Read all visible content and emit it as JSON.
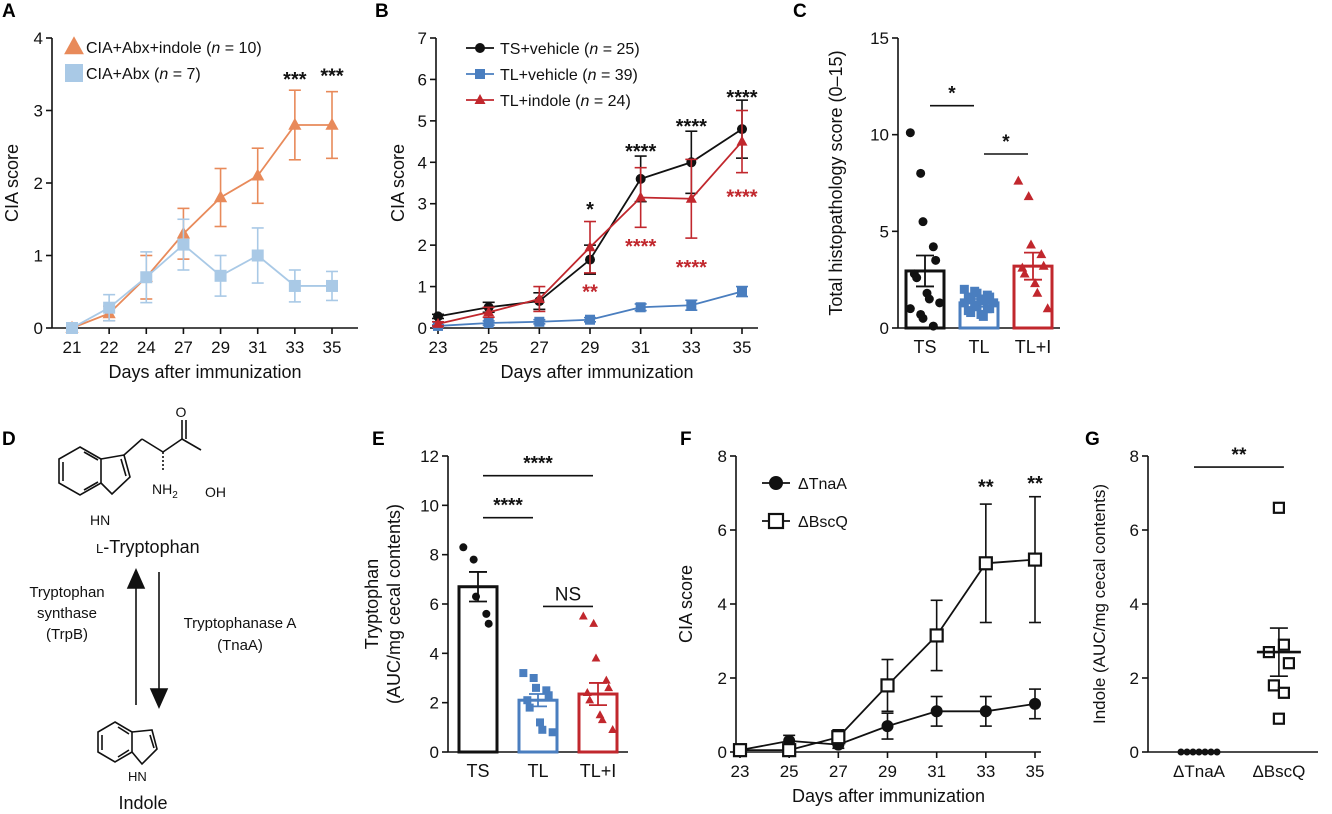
{
  "figure": {
    "panels": [
      "A",
      "B",
      "C",
      "D",
      "E",
      "F",
      "G"
    ]
  },
  "colors": {
    "orange": "#E88A5A",
    "lightblue": "#A9C9E6",
    "black": "#111111",
    "blue": "#4A7EBF",
    "red": "#C1272D",
    "tlblue": "#4A7EBF"
  },
  "chart_data": [
    {
      "id": "A",
      "type": "line",
      "title": "",
      "xlabel": "Days after immunization",
      "ylabel": "CIA score",
      "x": [
        21,
        22,
        24,
        27,
        29,
        31,
        33,
        35
      ],
      "xticks": [
        "21",
        "22",
        "24",
        "27",
        "29",
        "31",
        "33",
        "35"
      ],
      "yticks": [
        "0",
        "1",
        "2",
        "3",
        "4"
      ],
      "ylim": [
        0,
        4
      ],
      "series": [
        {
          "name": "CIA+Abx+indole",
          "n_label": "(n = 10)",
          "marker": "triangle",
          "color": "#E88A5A",
          "values": [
            0,
            0.2,
            0.7,
            1.3,
            1.8,
            2.1,
            2.8,
            2.8
          ],
          "errors": [
            0,
            0.1,
            0.3,
            0.35,
            0.4,
            0.38,
            0.48,
            0.46
          ]
        },
        {
          "name": "CIA+Abx",
          "n_label": "(n = 7)",
          "marker": "square",
          "color": "#A9C9E6",
          "values": [
            0,
            0.28,
            0.7,
            1.15,
            0.72,
            1.0,
            0.58,
            0.58
          ],
          "errors": [
            0,
            0.18,
            0.35,
            0.35,
            0.28,
            0.38,
            0.22,
            0.2
          ]
        }
      ],
      "annotations": [
        {
          "text": "***",
          "x": 33,
          "y": 3.45
        },
        {
          "text": "***",
          "x": 35,
          "y": 3.5
        }
      ]
    },
    {
      "id": "B",
      "type": "line",
      "title": "",
      "xlabel": "Days after immunization",
      "ylabel": "CIA score",
      "x": [
        23,
        25,
        27,
        29,
        31,
        33,
        35
      ],
      "xticks": [
        "23",
        "25",
        "27",
        "29",
        "31",
        "33",
        "35"
      ],
      "yticks": [
        "0",
        "1",
        "2",
        "3",
        "4",
        "5",
        "6",
        "7"
      ],
      "ylim": [
        0,
        7
      ],
      "series": [
        {
          "name": "TS+vehicle",
          "n_label": "(n = 25)",
          "marker": "circle",
          "color": "#111111",
          "values": [
            0.28,
            0.5,
            0.65,
            1.65,
            3.6,
            4.0,
            4.8
          ],
          "errors": [
            0.05,
            0.12,
            0.2,
            0.35,
            0.55,
            0.75,
            0.7
          ]
        },
        {
          "name": "TL+vehicle",
          "n_label": "(n = 39)",
          "marker": "square",
          "color": "#4A7EBF",
          "values": [
            0.05,
            0.12,
            0.15,
            0.2,
            0.5,
            0.55,
            0.88
          ],
          "errors": [
            0.03,
            0.05,
            0.05,
            0.05,
            0.08,
            0.12,
            0.12
          ]
        },
        {
          "name": "TL+indole",
          "n_label": "(n = 24)",
          "marker": "triangle",
          "color": "#C1272D",
          "values": [
            0.1,
            0.38,
            0.7,
            1.95,
            3.15,
            3.12,
            4.5
          ],
          "errors": [
            0.05,
            0.12,
            0.3,
            0.62,
            0.72,
            0.95,
            0.75
          ]
        }
      ],
      "annotations": [
        {
          "text": "*",
          "x": 29,
          "y": 2.9,
          "color": "#111111"
        },
        {
          "text": "**",
          "x": 29,
          "y": 0.9,
          "color": "#C1272D"
        },
        {
          "text": "****",
          "x": 31,
          "y": 4.3,
          "color": "#111111"
        },
        {
          "text": "****",
          "x": 31,
          "y": 2.0,
          "color": "#C1272D"
        },
        {
          "text": "****",
          "x": 33,
          "y": 4.9,
          "color": "#111111"
        },
        {
          "text": "****",
          "x": 33,
          "y": 1.5,
          "color": "#C1272D"
        },
        {
          "text": "****",
          "x": 35,
          "y": 5.6,
          "color": "#111111"
        },
        {
          "text": "****",
          "x": 35,
          "y": 3.2,
          "color": "#C1272D"
        }
      ]
    },
    {
      "id": "C",
      "type": "bar",
      "title": "",
      "xlabel": "",
      "ylabel": "Total histopathology score (0–15)",
      "categories": [
        "TS",
        "TL",
        "TL+I"
      ],
      "values": [
        2.95,
        1.3,
        3.2
      ],
      "errors": [
        0.8,
        0.2,
        0.7
      ],
      "colors": [
        "#111111",
        "#4A7EBF",
        "#C1272D"
      ],
      "markers": [
        "circle",
        "square",
        "triangle"
      ],
      "points": [
        [
          10.1,
          8.0,
          5.5,
          4.2,
          3.5,
          2.8,
          2.6,
          1.8,
          1.5,
          1.3,
          1.0,
          0.7,
          0.5,
          0.1
        ],
        [
          2.0,
          1.9,
          1.8,
          1.7,
          1.6,
          1.6,
          1.5,
          1.5,
          1.4,
          1.3,
          1.3,
          1.2,
          1.1,
          1.0,
          1.0,
          0.9,
          0.8,
          0.7,
          0.6
        ],
        [
          7.6,
          6.8,
          4.3,
          3.8,
          3.2,
          3.1,
          2.8,
          2.3,
          1.8,
          1.0
        ]
      ],
      "yticks": [
        "0",
        "5",
        "10",
        "15"
      ],
      "ylim": [
        0,
        15
      ],
      "sig": [
        {
          "from": 0,
          "to": 1,
          "text": "*",
          "y": 11.5
        },
        {
          "from": 1,
          "to": 2,
          "text": "*",
          "y": 9.0
        }
      ]
    },
    {
      "id": "E",
      "type": "bar",
      "title": "",
      "xlabel": "",
      "ylabel": "Tryptophan",
      "ylabel2": "(AUC/mg cecal contents)",
      "categories": [
        "TS",
        "TL",
        "TL+I"
      ],
      "values": [
        6.7,
        2.1,
        2.35
      ],
      "errors": [
        0.6,
        0.25,
        0.45
      ],
      "colors": [
        "#111111",
        "#4A7EBF",
        "#C1272D"
      ],
      "markers": [
        "circle",
        "square",
        "triangle"
      ],
      "points": [
        [
          8.3,
          7.8,
          6.3,
          5.6,
          5.2
        ],
        [
          3.2,
          3.0,
          2.6,
          2.5,
          2.3,
          2.1,
          1.8,
          1.2,
          0.9,
          0.8
        ],
        [
          5.5,
          5.2,
          3.8,
          2.9,
          2.6,
          2.4,
          2.1,
          1.5,
          1.3,
          0.9
        ]
      ],
      "yticks": [
        "0",
        "2",
        "4",
        "6",
        "8",
        "10",
        "12"
      ],
      "ylim": [
        0,
        12
      ],
      "sig": [
        {
          "from": 0,
          "to": 2,
          "text": "****",
          "y": 11.2
        },
        {
          "from": 0,
          "to": 1,
          "text": "****",
          "y": 9.5
        },
        {
          "from": 1,
          "to": 2,
          "text": "NS",
          "y": 5.9
        }
      ]
    },
    {
      "id": "F",
      "type": "line",
      "title": "",
      "xlabel": "Days after immunization",
      "ylabel": "CIA score",
      "x": [
        23,
        25,
        27,
        29,
        31,
        33,
        35
      ],
      "xticks": [
        "23",
        "25",
        "27",
        "29",
        "31",
        "33",
        "35"
      ],
      "yticks": [
        "0",
        "2",
        "4",
        "6",
        "8"
      ],
      "ylim": [
        0,
        8
      ],
      "series": [
        {
          "name": "ΔTnaA",
          "marker": "circle",
          "color": "#111111",
          "values": [
            0.05,
            0.3,
            0.2,
            0.7,
            1.1,
            1.1,
            1.3
          ],
          "errors": [
            0.05,
            0.15,
            0.1,
            0.35,
            0.4,
            0.4,
            0.4
          ]
        },
        {
          "name": "ΔBscQ",
          "marker": "open-square",
          "color": "#111111",
          "values": [
            0.05,
            0.05,
            0.4,
            1.8,
            3.15,
            5.1,
            5.2
          ],
          "errors": [
            0.05,
            0.05,
            0.2,
            0.7,
            0.95,
            1.6,
            1.7
          ]
        }
      ],
      "annotations": [
        {
          "text": "**",
          "x": 33,
          "y": 7.2
        },
        {
          "text": "**",
          "x": 35,
          "y": 7.3
        }
      ]
    },
    {
      "id": "G",
      "type": "scatter",
      "title": "",
      "xlabel": "",
      "ylabel": "Indole (AUC/mg cecal contents)",
      "categories": [
        "ΔTnaA",
        "ΔBscQ"
      ],
      "means": [
        0,
        2.7
      ],
      "errors": [
        0,
        0.65
      ],
      "points": [
        [
          0,
          0,
          0,
          0,
          0,
          0,
          0
        ],
        [
          6.6,
          2.9,
          2.7,
          2.4,
          1.8,
          1.6,
          0.9
        ]
      ],
      "yticks": [
        "0",
        "2",
        "4",
        "6",
        "8"
      ],
      "ylim": [
        0,
        8
      ],
      "sig": [
        {
          "from": 0,
          "to": 1,
          "text": "**",
          "y": 7.7
        }
      ]
    }
  ],
  "pathway": {
    "top_compound": "L-Tryptophan",
    "top_small_cap": "L",
    "top_rest": "-Tryptophan",
    "bottom_compound": "Indole",
    "forward_enzyme_line1": "Tryptophanase A",
    "forward_enzyme_line2": "(TnaA)",
    "reverse_enzyme_line1": "Tryptophan",
    "reverse_enzyme_line2": "synthase",
    "reverse_enzyme_line3": "(TrpB)",
    "labels": {
      "oh": "OH",
      "nh2": "NH",
      "nh2_sub": "2",
      "hn": "HN",
      "hn_indole": "HN",
      "o": "O"
    }
  }
}
